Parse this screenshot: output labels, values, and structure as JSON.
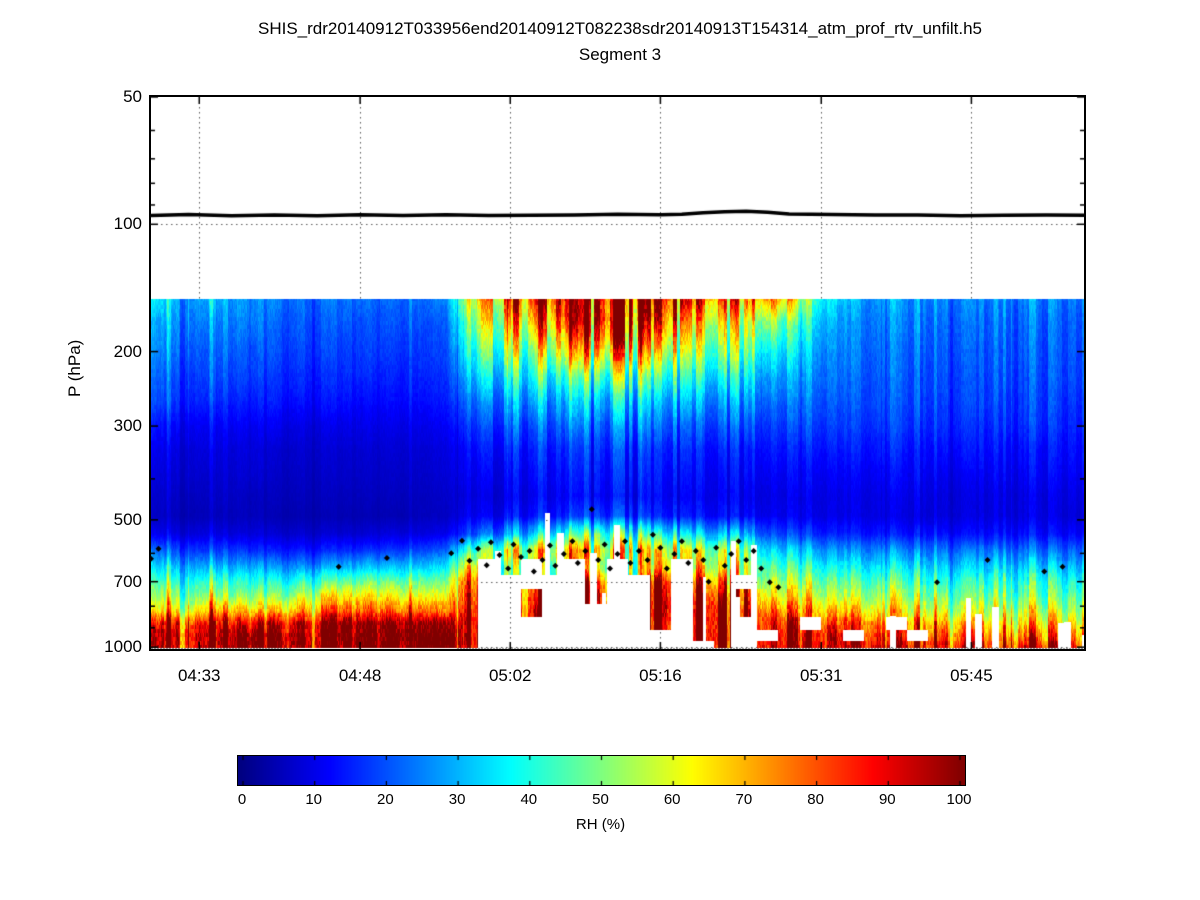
{
  "chart_data": {
    "type": "heatmap",
    "title": "SHIS_rdr20140912T033956end20140912T082238sdr20140913T154314_atm_prof_rtv_unfilt.h5",
    "subtitle": "Segment 3",
    "x_axis": {
      "label": "",
      "tick_labels": [
        "04:33",
        "04:48",
        "05:02",
        "05:16",
        "05:31",
        "05:45"
      ],
      "tick_minutes": [
        273,
        288,
        302,
        316,
        331,
        345
      ],
      "range_minutes": [
        268.5,
        355.5
      ]
    },
    "y_axis": {
      "label": "P (hPa)",
      "scale": "log",
      "range_hpa": [
        50,
        1010
      ],
      "major_ticks": [
        50,
        100,
        200,
        300,
        500,
        700,
        1000
      ],
      "minor_ticks": [
        60,
        70,
        80,
        90,
        400,
        600,
        800,
        900
      ],
      "gridline_ticks": [
        100,
        200,
        300,
        500,
        700,
        1000
      ]
    },
    "colorbar": {
      "label": "RH (%)",
      "ticks": [
        0,
        10,
        20,
        30,
        40,
        50,
        60,
        70,
        80,
        90,
        100
      ],
      "range": [
        0,
        100
      ],
      "colormap": "jet"
    },
    "colors": {
      "background": "#ffffff",
      "grid": "#000000",
      "flight_line": "#000000",
      "cloud_marker": "#000000",
      "surface_marker": "#8c8c8c",
      "missing_data": "#ffffff"
    },
    "flight_track": {
      "description": "aircraft pressure level line",
      "points_min_hpa": [
        [
          268.5,
          95.5
        ],
        [
          272,
          95
        ],
        [
          276,
          95.3
        ],
        [
          280,
          95
        ],
        [
          284,
          95.4
        ],
        [
          288,
          95
        ],
        [
          292,
          95.2
        ],
        [
          296,
          95
        ],
        [
          300,
          95.3
        ],
        [
          304,
          95
        ],
        [
          308,
          95.2
        ],
        [
          312,
          94.8
        ],
        [
          316,
          95
        ],
        [
          318,
          94.5
        ],
        [
          320,
          94
        ],
        [
          322,
          93.5
        ],
        [
          324,
          93.2
        ],
        [
          326,
          93.8
        ],
        [
          328,
          94.5
        ],
        [
          332,
          95
        ],
        [
          336,
          95.2
        ],
        [
          340,
          95
        ],
        [
          344,
          95.3
        ],
        [
          348,
          95
        ],
        [
          352,
          95.2
        ],
        [
          355.5,
          95
        ]
      ]
    },
    "cloud_markers": {
      "symbol": "diamond",
      "points_min_hpa": [
        [
          268.5,
          618
        ],
        [
          269.2,
          585
        ],
        [
          286,
          645
        ],
        [
          290.5,
          615
        ],
        [
          296.5,
          600
        ],
        [
          297.5,
          560
        ],
        [
          298.2,
          625
        ],
        [
          299,
          585
        ],
        [
          299.8,
          640
        ],
        [
          300.2,
          565
        ],
        [
          301,
          605
        ],
        [
          301.8,
          652
        ],
        [
          302.3,
          572
        ],
        [
          303,
          612
        ],
        [
          303.8,
          592
        ],
        [
          304.2,
          662
        ],
        [
          305,
          622
        ],
        [
          305.7,
          575
        ],
        [
          306.2,
          642
        ],
        [
          307,
          602
        ],
        [
          307.8,
          562
        ],
        [
          308.3,
          632
        ],
        [
          309,
          592
        ],
        [
          309.6,
          472
        ],
        [
          310.2,
          622
        ],
        [
          310.8,
          572
        ],
        [
          311.3,
          652
        ],
        [
          312,
          602
        ],
        [
          312.7,
          562
        ],
        [
          313.2,
          632
        ],
        [
          314,
          592
        ],
        [
          314.8,
          622
        ],
        [
          315.3,
          542
        ],
        [
          316,
          582
        ],
        [
          316.6,
          652
        ],
        [
          317.3,
          602
        ],
        [
          318,
          562
        ],
        [
          318.6,
          632
        ],
        [
          319.3,
          592
        ],
        [
          320,
          622
        ],
        [
          320.5,
          700
        ],
        [
          321.2,
          582
        ],
        [
          322,
          642
        ],
        [
          322.6,
          602
        ],
        [
          323.3,
          562
        ],
        [
          324,
          622
        ],
        [
          324.7,
          592
        ],
        [
          325.4,
          652
        ],
        [
          326.2,
          702
        ],
        [
          327,
          722
        ],
        [
          341.8,
          702
        ],
        [
          346.5,
          622
        ],
        [
          351.8,
          662
        ],
        [
          353.5,
          645
        ]
      ]
    },
    "surface_markers": {
      "pressure_hpa": 1005,
      "time_segments_min": [
        [
          268.5,
          281.5
        ],
        [
          297,
          355.5
        ]
      ]
    },
    "texture": {
      "seed": 42,
      "stripe_noise": 0.2,
      "smooth_left_window_min": [
        279,
        297
      ],
      "middle_window_min": [
        297,
        325.5
      ],
      "middle_noise": 0.32
    },
    "heatmap": {
      "time_start_min": 268,
      "time_step_min": 2,
      "missing_value": -1,
      "pressure_levels_hpa": [
        150,
        170,
        200,
        230,
        260,
        300,
        340,
        390,
        440,
        490,
        540,
        590,
        650,
        700,
        760,
        820,
        880,
        940,
        1000
      ],
      "rh_columns": [
        [
          40,
          32,
          28,
          25,
          22,
          16,
          12,
          10,
          8,
          7,
          12,
          25,
          38,
          48,
          55,
          65,
          90,
          100,
          100
        ],
        [
          35,
          30,
          26,
          22,
          20,
          14,
          11,
          9,
          8,
          7,
          11,
          22,
          36,
          46,
          58,
          70,
          95,
          100,
          100
        ],
        [
          30,
          28,
          24,
          20,
          18,
          13,
          10,
          9,
          7,
          6,
          10,
          20,
          34,
          45,
          55,
          68,
          92,
          100,
          100
        ],
        [
          32,
          26,
          22,
          20,
          17,
          12,
          10,
          8,
          7,
          6,
          10,
          18,
          32,
          44,
          56,
          72,
          95,
          100,
          100
        ],
        [
          28,
          25,
          22,
          19,
          16,
          12,
          9,
          8,
          7,
          6,
          9,
          18,
          30,
          42,
          52,
          70,
          90,
          100,
          100
        ],
        [
          26,
          24,
          20,
          18,
          15,
          11,
          9,
          8,
          6,
          6,
          9,
          16,
          30,
          40,
          50,
          65,
          88,
          100,
          100
        ],
        [
          25,
          22,
          20,
          17,
          15,
          11,
          8,
          7,
          6,
          5,
          8,
          15,
          28,
          40,
          52,
          68,
          92,
          100,
          100
        ],
        [
          24,
          22,
          19,
          17,
          14,
          10,
          8,
          7,
          6,
          5,
          8,
          15,
          28,
          42,
          56,
          72,
          95,
          100,
          100
        ],
        [
          24,
          21,
          19,
          16,
          14,
          10,
          8,
          7,
          6,
          5,
          8,
          15,
          30,
          45,
          62,
          76,
          96,
          100,
          100
        ],
        [
          23,
          21,
          18,
          16,
          14,
          10,
          8,
          7,
          6,
          5,
          8,
          16,
          30,
          46,
          64,
          78,
          98,
          100,
          100
        ],
        [
          23,
          20,
          18,
          16,
          13,
          10,
          8,
          7,
          6,
          5,
          8,
          16,
          32,
          48,
          64,
          78,
          98,
          100,
          100
        ],
        [
          22,
          20,
          18,
          15,
          13,
          10,
          8,
          7,
          6,
          5,
          9,
          17,
          32,
          48,
          63,
          77,
          98,
          100,
          100
        ],
        [
          22,
          20,
          17,
          15,
          13,
          10,
          8,
          7,
          6,
          5,
          9,
          17,
          32,
          46,
          60,
          75,
          96,
          100,
          100
        ],
        [
          22,
          19,
          17,
          15,
          13,
          10,
          8,
          7,
          6,
          6,
          9,
          18,
          32,
          46,
          60,
          74,
          95,
          100,
          100
        ],
        [
          24,
          20,
          18,
          16,
          14,
          11,
          9,
          8,
          7,
          6,
          10,
          20,
          34,
          46,
          58,
          70,
          92,
          100,
          100
        ],
        [
          60,
          50,
          40,
          32,
          25,
          18,
          14,
          12,
          10,
          12,
          20,
          45,
          70,
          85,
          90,
          95,
          100,
          100,
          100
        ],
        [
          75,
          65,
          50,
          38,
          28,
          20,
          15,
          12,
          10,
          12,
          25,
          55,
          -1,
          -1,
          -1,
          -1,
          -1,
          -1,
          -1
        ],
        [
          85,
          70,
          55,
          40,
          30,
          22,
          16,
          13,
          11,
          14,
          30,
          60,
          50,
          -1,
          -1,
          -1,
          -1,
          -1,
          -1
        ],
        [
          90,
          75,
          55,
          42,
          32,
          22,
          17,
          14,
          12,
          15,
          35,
          65,
          -1,
          -1,
          90,
          100,
          -1,
          -1,
          -1
        ],
        [
          100,
          85,
          65,
          45,
          32,
          24,
          18,
          15,
          13,
          16,
          40,
          70,
          55,
          -1,
          -1,
          -1,
          -1,
          -1,
          -1
        ],
        [
          100,
          95,
          70,
          48,
          35,
          25,
          18,
          15,
          13,
          18,
          45,
          75,
          -1,
          -1,
          -1,
          -1,
          -1,
          -1,
          -1
        ],
        [
          100,
          100,
          75,
          50,
          35,
          25,
          19,
          16,
          14,
          20,
          50,
          70,
          60,
          85,
          95,
          -1,
          -1,
          -1,
          -1
        ],
        [
          100,
          95,
          70,
          48,
          34,
          24,
          18,
          15,
          13,
          18,
          45,
          65,
          -1,
          -1,
          -1,
          -1,
          -1,
          -1,
          -1
        ],
        [
          95,
          85,
          65,
          45,
          32,
          23,
          17,
          14,
          12,
          16,
          40,
          60,
          55,
          -1,
          -1,
          -1,
          -1,
          -1,
          -1
        ],
        [
          90,
          80,
          60,
          42,
          30,
          22,
          16,
          14,
          12,
          15,
          38,
          62,
          70,
          90,
          100,
          100,
          95,
          -1,
          -1
        ],
        [
          85,
          70,
          55,
          40,
          30,
          21,
          16,
          13,
          11,
          14,
          35,
          58,
          -1,
          -1,
          -1,
          -1,
          -1,
          -1,
          -1
        ],
        [
          80,
          65,
          50,
          38,
          28,
          20,
          15,
          13,
          11,
          14,
          32,
          55,
          65,
          80,
          95,
          100,
          100,
          100,
          -1
        ],
        [
          75,
          60,
          48,
          36,
          27,
          20,
          15,
          12,
          11,
          13,
          30,
          52,
          60,
          75,
          90,
          100,
          100,
          100,
          100
        ],
        [
          70,
          55,
          45,
          34,
          26,
          19,
          14,
          12,
          10,
          12,
          28,
          48,
          55,
          -1,
          85,
          95,
          -1,
          -1,
          -1
        ],
        [
          85,
          60,
          42,
          32,
          26,
          20,
          16,
          13,
          11,
          12,
          22,
          38,
          50,
          60,
          70,
          85,
          95,
          -1,
          100
        ],
        [
          70,
          50,
          38,
          30,
          25,
          20,
          16,
          13,
          11,
          12,
          20,
          35,
          48,
          58,
          68,
          80,
          95,
          100,
          100
        ],
        [
          50,
          40,
          32,
          28,
          24,
          20,
          16,
          13,
          11,
          11,
          18,
          32,
          45,
          55,
          65,
          78,
          -1,
          95,
          100
        ],
        [
          38,
          32,
          28,
          26,
          23,
          20,
          16,
          13,
          11,
          11,
          17,
          30,
          42,
          52,
          62,
          75,
          90,
          100,
          100
        ],
        [
          32,
          28,
          26,
          24,
          22,
          19,
          16,
          13,
          11,
          11,
          16,
          28,
          40,
          50,
          60,
          72,
          88,
          -1,
          100
        ],
        [
          30,
          27,
          25,
          23,
          22,
          19,
          16,
          13,
          11,
          11,
          16,
          28,
          40,
          50,
          58,
          70,
          85,
          95,
          100
        ],
        [
          30,
          26,
          24,
          23,
          21,
          19,
          16,
          13,
          11,
          10,
          15,
          27,
          38,
          48,
          58,
          68,
          -1,
          90,
          100
        ],
        [
          28,
          26,
          24,
          22,
          21,
          18,
          15,
          13,
          11,
          10,
          15,
          26,
          38,
          46,
          55,
          65,
          80,
          -1,
          95
        ],
        [
          28,
          25,
          23,
          22,
          20,
          18,
          15,
          12,
          10,
          10,
          15,
          26,
          36,
          45,
          55,
          65,
          78,
          90,
          100
        ],
        [
          27,
          25,
          23,
          21,
          20,
          18,
          15,
          12,
          10,
          10,
          14,
          25,
          36,
          45,
          52,
          62,
          75,
          85,
          95
        ],
        [
          27,
          24,
          22,
          21,
          20,
          17,
          15,
          12,
          10,
          10,
          14,
          25,
          35,
          44,
          52,
          60,
          72,
          85,
          95
        ],
        [
          26,
          24,
          22,
          21,
          19,
          17,
          14,
          12,
          10,
          10,
          14,
          24,
          35,
          44,
          50,
          60,
          70,
          80,
          90
        ],
        [
          26,
          23,
          22,
          20,
          19,
          17,
          14,
          12,
          10,
          10,
          14,
          24,
          34,
          42,
          50,
          58,
          68,
          80,
          95
        ],
        [
          25,
          23,
          21,
          20,
          19,
          17,
          14,
          12,
          10,
          10,
          13,
          23,
          34,
          42,
          48,
          58,
          68,
          78,
          90
        ],
        [
          25,
          22,
          21,
          20,
          18,
          16,
          14,
          12,
          10,
          9,
          13,
          22,
          32,
          40,
          48,
          55,
          65,
          75,
          88
        ]
      ]
    }
  }
}
